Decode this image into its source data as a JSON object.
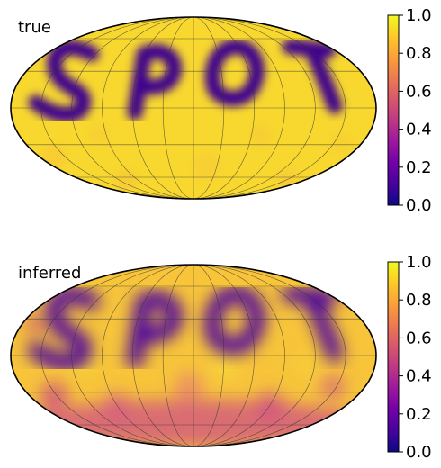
{
  "chart_data": [
    {
      "type": "heatmap",
      "panel_label": "true",
      "projection": "mollweide",
      "colormap": "plasma",
      "grid": true,
      "colorbar": {
        "range": [
          0.0,
          1.0
        ],
        "ticks": [
          "0.0",
          "0.2",
          "0.4",
          "0.6",
          "0.8",
          "1.0"
        ]
      },
      "dark_feature_text": "SPOT"
    },
    {
      "type": "heatmap",
      "panel_label": "inferred",
      "projection": "mollweide",
      "colormap": "plasma",
      "grid": true,
      "colorbar": {
        "range": [
          0.0,
          1.0
        ],
        "ticks": [
          "0.0",
          "0.2",
          "0.4",
          "0.6",
          "0.8",
          "1.0"
        ]
      },
      "dark_feature_text": "SPOT"
    }
  ],
  "colors": {
    "plasma_stops": [
      "#0d0887",
      "#46039f",
      "#7201a8",
      "#9c179e",
      "#bd3786",
      "#d8576b",
      "#ed7953",
      "#fb9f3a",
      "#fdca26",
      "#f0f921"
    ]
  }
}
